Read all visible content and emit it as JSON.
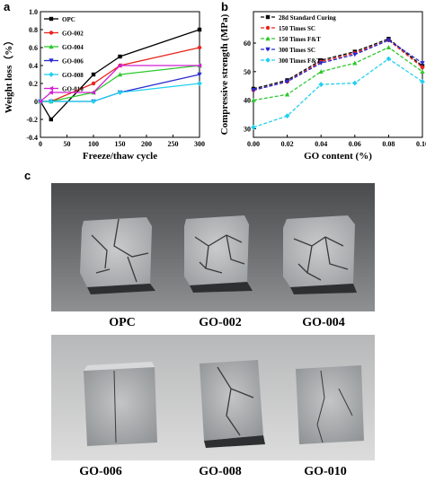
{
  "panels": {
    "a": "a",
    "b": "b",
    "c": "c"
  },
  "chart_data": [
    {
      "type": "line",
      "panel": "a",
      "xlabel": "Freeze/thaw cycle",
      "ylabel": "Weight loss（%）",
      "x": [
        0,
        20,
        100,
        150,
        300
      ],
      "xticks": [
        0,
        50,
        100,
        150,
        200,
        250,
        300
      ],
      "xlim": [
        0,
        300
      ],
      "yticks": [
        -0.4,
        -0.2,
        0.0,
        0.2,
        0.4,
        0.6,
        0.8,
        1.0
      ],
      "ylim": [
        -0.4,
        1.0
      ],
      "legend_position": "top-left",
      "grid": false,
      "series": [
        {
          "name": "OPC",
          "color": "#000000",
          "marker": "square",
          "values": [
            0.0,
            -0.2,
            0.3,
            0.5,
            0.8
          ]
        },
        {
          "name": "GO-002",
          "color": "#e8241c",
          "marker": "circle",
          "values": [
            0.0,
            0.0,
            0.2,
            0.4,
            0.6
          ]
        },
        {
          "name": "GO-004",
          "color": "#2ec82e",
          "marker": "triangle-up",
          "values": [
            0.0,
            0.0,
            0.1,
            0.3,
            0.4
          ]
        },
        {
          "name": "GO-006",
          "color": "#2a2ad0",
          "marker": "triangle-down",
          "values": [
            0.0,
            0.0,
            0.0,
            0.1,
            0.3
          ]
        },
        {
          "name": "GO-008",
          "color": "#22d0ee",
          "marker": "diamond",
          "values": [
            0.0,
            0.0,
            0.0,
            0.1,
            0.2
          ]
        },
        {
          "name": "GO-010",
          "color": "#d21ed2",
          "marker": "triangle-left",
          "values": [
            0.0,
            0.1,
            0.1,
            0.4,
            0.4
          ]
        }
      ]
    },
    {
      "type": "line",
      "panel": "b",
      "xlabel": "GO content (%)",
      "ylabel": "Compressive strength (MPa)",
      "x": [
        0.0,
        0.02,
        0.04,
        0.06,
        0.08,
        0.1
      ],
      "xticks": [
        "0.00",
        "0.02",
        "0.04",
        "0.06",
        "0.08",
        "0.10"
      ],
      "xlim": [
        0.0,
        0.1
      ],
      "yticks": [
        30,
        40,
        50,
        60
      ],
      "ylim": [
        27,
        71
      ],
      "legend_position": "top-left",
      "grid": false,
      "series": [
        {
          "name": "28d Standard Curing",
          "color": "#0a0a0a",
          "marker": "square",
          "values": [
            44.0,
            47.0,
            54.0,
            57.0,
            61.5,
            52.0
          ]
        },
        {
          "name": "150 Times SC",
          "color": "#e8241c",
          "marker": "circle",
          "values": [
            43.5,
            46.5,
            53.5,
            56.5,
            61.0,
            51.5
          ]
        },
        {
          "name": "150 Times F&T",
          "color": "#2ec82e",
          "marker": "triangle-up",
          "values": [
            40.0,
            42.0,
            50.0,
            53.0,
            58.5,
            50.0
          ]
        },
        {
          "name": "300 Times SC",
          "color": "#2a2ad0",
          "marker": "triangle-down",
          "values": [
            43.5,
            46.5,
            53.0,
            56.0,
            61.0,
            53.0
          ]
        },
        {
          "name": "300 Times F&T",
          "color": "#22d0ee",
          "marker": "diamond",
          "values": [
            30.5,
            34.5,
            45.5,
            46.0,
            54.5,
            46.5
          ]
        }
      ]
    }
  ],
  "photos": [
    {
      "labels": [
        "OPC",
        "GO-002",
        "GO-004"
      ]
    },
    {
      "labels": [
        "GO-006",
        "GO-008",
        "GO-010"
      ]
    }
  ]
}
